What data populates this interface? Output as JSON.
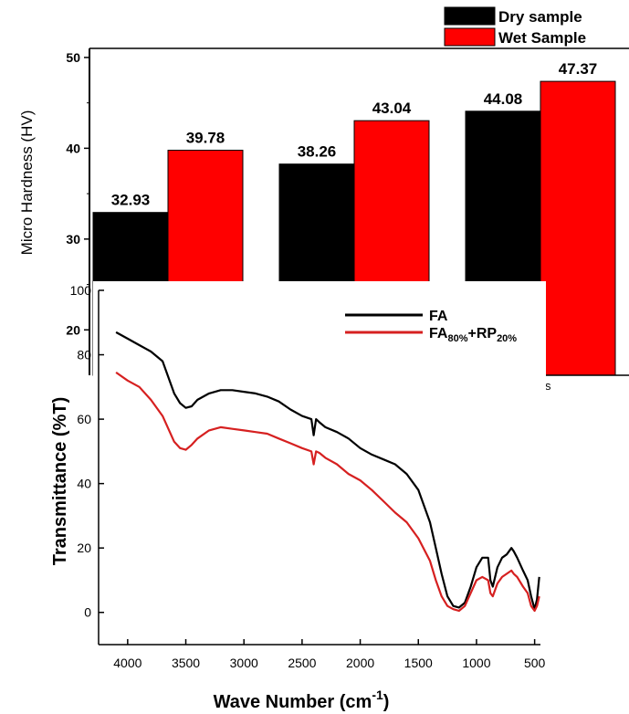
{
  "chart_data": [
    {
      "type": "bar",
      "title": "",
      "xlabel": "",
      "ylabel": "Micro Hardness (HV)",
      "ylim": [
        15,
        51
      ],
      "yticks": [
        20,
        30,
        40,
        50
      ],
      "categories": [
        "",
        "",
        ""
      ],
      "grid": false,
      "legend_position": "top-right",
      "series": [
        {
          "name": "Dry sample",
          "color": "#000000",
          "values": [
            32.93,
            38.26,
            44.08
          ],
          "labels": [
            "32.93",
            "38.26",
            "44.08"
          ]
        },
        {
          "name": "Wet Sample",
          "color": "#ff0000",
          "values": [
            39.78,
            43.04,
            47.37
          ],
          "labels": [
            "39.78",
            "43.04",
            "47.37"
          ]
        }
      ],
      "partial_tick_text": "s"
    },
    {
      "type": "line",
      "title": "",
      "xlabel": "Wave Number (cm",
      "xlabel_superscript": "-1",
      "xlabel_suffix": ")",
      "ylabel": "Transmittance (%T)",
      "xlim": [
        4250,
        450
      ],
      "ylim": [
        -10,
        100
      ],
      "xticks": [
        4000,
        3500,
        3000,
        2500,
        2000,
        1500,
        1000,
        500
      ],
      "yticks": [
        0,
        20,
        40,
        60,
        80,
        100
      ],
      "grid": false,
      "legend_position": "top-right",
      "series": [
        {
          "name": "FA",
          "color": "#000000",
          "x": [
            4100,
            4000,
            3900,
            3800,
            3700,
            3600,
            3550,
            3500,
            3450,
            3400,
            3300,
            3200,
            3100,
            3000,
            2900,
            2800,
            2700,
            2600,
            2500,
            2420,
            2400,
            2380,
            2350,
            2300,
            2200,
            2100,
            2000,
            1900,
            1800,
            1700,
            1600,
            1500,
            1400,
            1350,
            1300,
            1250,
            1200,
            1150,
            1100,
            1050,
            1000,
            950,
            900,
            880,
            860,
            820,
            780,
            740,
            700,
            680,
            650,
            600,
            560,
            530,
            500,
            480,
            460
          ],
          "y": [
            87,
            85,
            83,
            81,
            78,
            68,
            65,
            63.5,
            64,
            66,
            68,
            69,
            69,
            68.5,
            68,
            67,
            65.5,
            63,
            61,
            60,
            55,
            60,
            59,
            57.5,
            56,
            54,
            51,
            49,
            47.5,
            46,
            43,
            38,
            28,
            20,
            12,
            5,
            2,
            1.5,
            3,
            8,
            14,
            17,
            17,
            10,
            8,
            14,
            17,
            18,
            20,
            19,
            17,
            13,
            10,
            5,
            1,
            4,
            11
          ],
          "labels": [
            "FA"
          ]
        },
        {
          "name": "FA",
          "name_sub1": "80%",
          "name_mid": "+RP",
          "name_sub2": "20%",
          "color": "#d62020",
          "x": [
            4100,
            4000,
            3900,
            3800,
            3700,
            3600,
            3550,
            3500,
            3450,
            3400,
            3300,
            3200,
            3100,
            3000,
            2900,
            2800,
            2700,
            2600,
            2500,
            2420,
            2400,
            2380,
            2350,
            2300,
            2200,
            2100,
            2000,
            1900,
            1800,
            1700,
            1600,
            1500,
            1400,
            1350,
            1300,
            1250,
            1200,
            1150,
            1100,
            1050,
            1000,
            950,
            900,
            880,
            860,
            820,
            780,
            740,
            700,
            680,
            650,
            600,
            560,
            530,
            500,
            480,
            460
          ],
          "y": [
            74.5,
            72,
            70,
            66,
            61,
            53,
            51,
            50.5,
            52,
            54,
            56.5,
            57.5,
            57,
            56.5,
            56,
            55.5,
            54,
            52.5,
            51,
            50,
            46,
            50,
            49.5,
            48,
            46,
            43,
            41,
            38,
            34.5,
            31,
            28,
            23,
            16,
            10,
            5,
            2,
            1,
            0.5,
            2,
            6,
            10,
            11,
            10,
            6,
            5,
            9,
            11,
            12,
            13,
            12,
            11,
            8,
            6,
            2,
            0.5,
            2,
            5
          ]
        }
      ]
    }
  ]
}
